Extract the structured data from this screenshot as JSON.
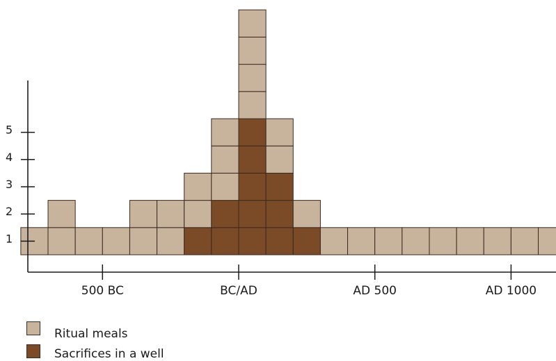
{
  "colors": {
    "ritual_meals": "#c8b49c",
    "sacrifices": "#7b4a26",
    "cell_border": "#3a2a20",
    "axis": "#1a1a1a"
  },
  "legend": {
    "items": [
      {
        "label": "Ritual meals",
        "color": "#c8b49c"
      },
      {
        "label": "Sacrifices in a well",
        "color": "#7b4a26"
      }
    ]
  },
  "chart_data": {
    "type": "bar",
    "stacked": true,
    "title": "",
    "xlabel": "",
    "ylabel": "",
    "x_ticks": [
      {
        "label": "500 BC",
        "value": -500
      },
      {
        "label": "BC/AD",
        "value": 0
      },
      {
        "label": "AD 500",
        "value": 500
      },
      {
        "label": "AD 1000",
        "value": 1000
      }
    ],
    "y_ticks": [
      1,
      2,
      3,
      4,
      5
    ],
    "ylim": [
      0,
      9
    ],
    "bin_width_years": 100,
    "categories": [
      -750,
      -650,
      -550,
      -450,
      -350,
      -250,
      -150,
      -50,
      50,
      150,
      250,
      350,
      450,
      550,
      650,
      750,
      850,
      950,
      1050,
      1150
    ],
    "series": [
      {
        "name": "Sacrifices in a well",
        "values": [
          0,
          0,
          0,
          0,
          0,
          0,
          1,
          2,
          5,
          3,
          1,
          0,
          0,
          0,
          0,
          0,
          0,
          0,
          0,
          0
        ]
      },
      {
        "name": "Ritual meals",
        "values": [
          1,
          2,
          1,
          1,
          2,
          2,
          2,
          3,
          4,
          2,
          1,
          1,
          1,
          1,
          1,
          1,
          1,
          1,
          1,
          1
        ]
      }
    ],
    "grid": false,
    "legend_position": "bottom-left"
  }
}
